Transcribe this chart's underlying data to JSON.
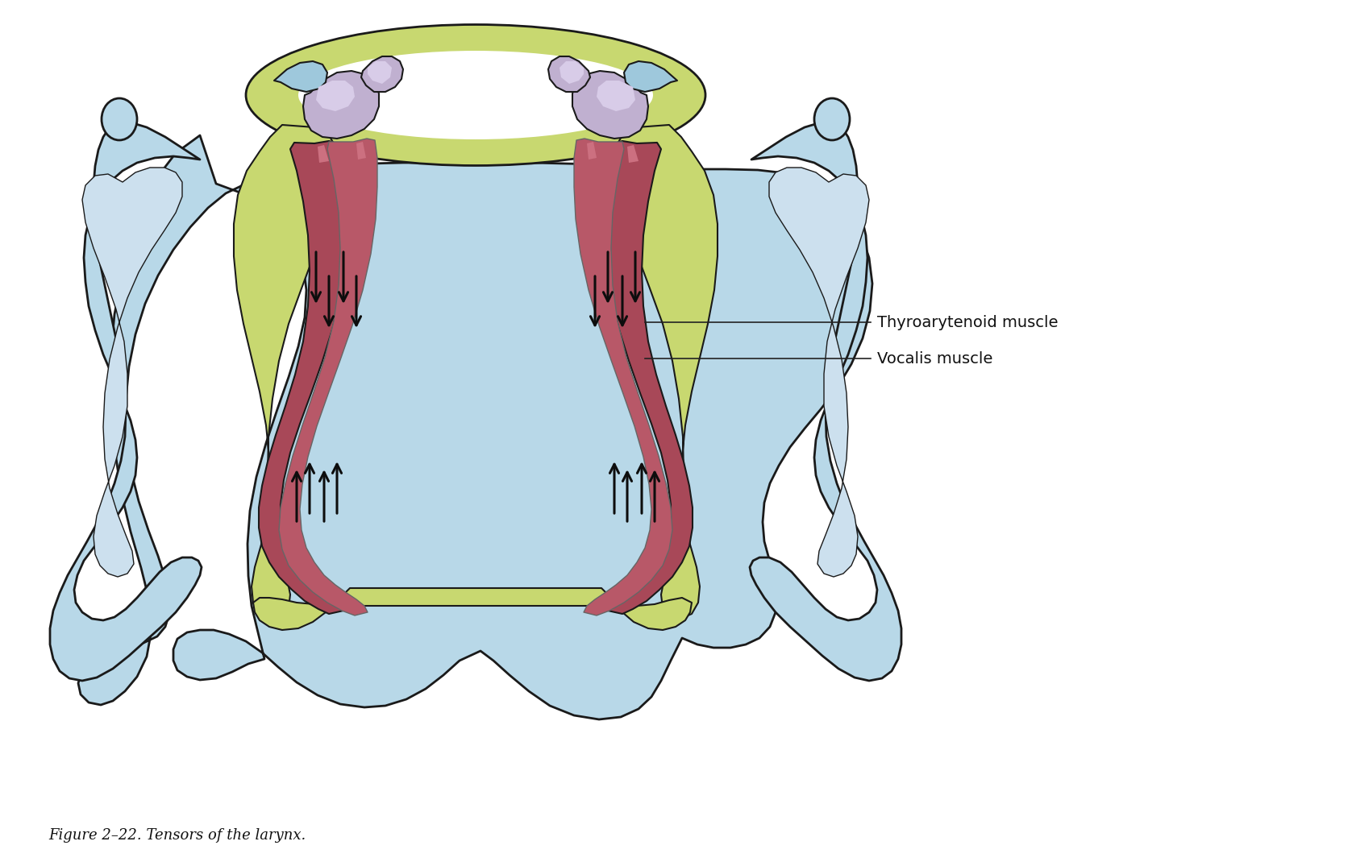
{
  "title": "Figure 2–22. Tensors of the larynx.",
  "title_fontsize": 13,
  "title_style": "italic",
  "label1": "Thyroarytenoid muscle",
  "label2": "Vocalis muscle",
  "label_fontsize": 14,
  "bg_color": "#ffffff",
  "blue_body": "#b8d8e8",
  "blue_dark": "#8ab8cc",
  "blue_outline": "#2a4a5a",
  "green_arch": "#c8d870",
  "green_dark": "#a8b850",
  "muscle_red_outer": "#a84858",
  "muscle_red_inner": "#b85868",
  "muscle_highlight": "#cc7080",
  "muscle_dark": "#884048",
  "lavender": "#c0b0d0",
  "lavender_light": "#d8cce8",
  "lavender_dark": "#9080a8",
  "blue_small": "#9ec8dc",
  "outline": "#1a1a1a",
  "arrow_color": "#0d0d0d",
  "line_color": "#222222",
  "text_color": "#111111"
}
